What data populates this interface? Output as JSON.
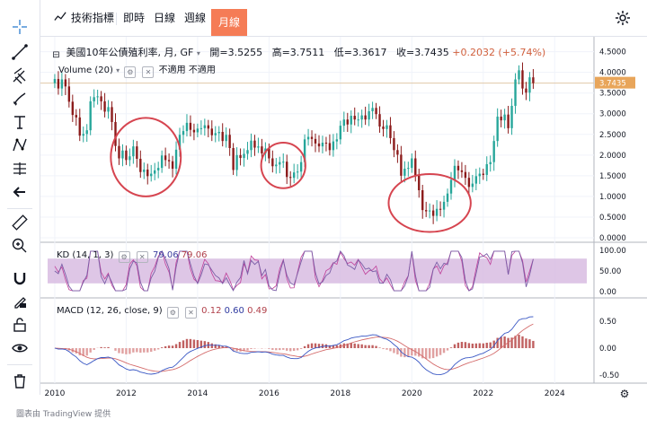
{
  "topbar": {
    "indicators_label": "技術指標",
    "intraday_label": "即時",
    "daily_label": "日線",
    "weekly_label": "週線",
    "monthly_label": "月線"
  },
  "legend_main": {
    "title": "美國10年公債殖利率, 月, GF",
    "open_label": "開=",
    "open": "3.5255",
    "high_label": "高=",
    "high": "3.7511",
    "low_label": "低=",
    "low": "3.3617",
    "close_label": "收=",
    "close": "3.7435",
    "change": "+0.2032 (+5.74%)"
  },
  "legend_volume": {
    "label": "Volume (20)",
    "na1": "不適用",
    "na2": "不適用"
  },
  "legend_kd": {
    "label": "KD (14, 1, 3)",
    "k": "79.06",
    "d": "79.06"
  },
  "legend_macd": {
    "label": "MACD (12, 26, close, 9)",
    "hist": "0.12",
    "macd": "0.60",
    "signal": "0.49"
  },
  "price_axis": [
    "4.5000",
    "4.0000",
    "3.5000",
    "3.0000",
    "2.5000",
    "2.0000",
    "1.5000",
    "1.0000",
    "0.5000",
    "0.0000"
  ],
  "last_price_tag": "3.7435",
  "kd_axis": [
    "100.00",
    "50.00",
    "0.00"
  ],
  "macd_axis": [
    "0.50",
    "0.00",
    "-0.50"
  ],
  "time_axis": [
    "2010",
    "2012",
    "2014",
    "2016",
    "2018",
    "2020",
    "2022",
    "2024"
  ],
  "footer": "圖表由 TradingView 提供",
  "colors": {
    "up": "#26a69a",
    "down": "#8b1a1a",
    "accent": "#f57c56",
    "kd_band": "#d6b8e0",
    "kd_k": "#7b5ea7",
    "kd_d": "#c0409a",
    "macd_line": "#3957c4",
    "signal_line": "#d46b6b",
    "circle": "#d64550"
  },
  "chart_data": {
    "type": "candlestick",
    "title": "美國10年公債殖利率, 月, GF",
    "xrange": [
      2009.8,
      2024.9
    ],
    "yrange": [
      0,
      4.6
    ],
    "closes": [
      [
        2010.0,
        3.84
      ],
      [
        2010.1,
        3.61
      ],
      [
        2010.2,
        3.83
      ],
      [
        2010.3,
        3.66
      ],
      [
        2010.4,
        3.29
      ],
      [
        2010.5,
        2.97
      ],
      [
        2010.6,
        2.91
      ],
      [
        2010.7,
        2.47
      ],
      [
        2010.8,
        2.51
      ],
      [
        2010.9,
        2.6
      ],
      [
        2011.0,
        3.3
      ],
      [
        2011.1,
        3.4
      ],
      [
        2011.2,
        3.42
      ],
      [
        2011.3,
        3.3
      ],
      [
        2011.4,
        3.05
      ],
      [
        2011.5,
        3.16
      ],
      [
        2011.6,
        2.8
      ],
      [
        2011.7,
        2.22
      ],
      [
        2011.8,
        1.92
      ],
      [
        2011.9,
        2.11
      ],
      [
        2012.0,
        1.88
      ],
      [
        2012.1,
        1.97
      ],
      [
        2012.2,
        2.21
      ],
      [
        2012.3,
        1.91
      ],
      [
        2012.4,
        1.59
      ],
      [
        2012.5,
        1.65
      ],
      [
        2012.6,
        1.49
      ],
      [
        2012.7,
        1.55
      ],
      [
        2012.8,
        1.63
      ],
      [
        2012.9,
        1.69
      ],
      [
        2013.0,
        1.99
      ],
      [
        2013.1,
        1.88
      ],
      [
        2013.2,
        1.85
      ],
      [
        2013.3,
        1.67
      ],
      [
        2013.4,
        2.13
      ],
      [
        2013.5,
        2.49
      ],
      [
        2013.6,
        2.58
      ],
      [
        2013.7,
        2.78
      ],
      [
        2013.8,
        2.61
      ],
      [
        2013.9,
        2.55
      ],
      [
        2014.0,
        2.64
      ],
      [
        2014.1,
        2.65
      ],
      [
        2014.2,
        2.72
      ],
      [
        2014.3,
        2.64
      ],
      [
        2014.4,
        2.48
      ],
      [
        2014.5,
        2.53
      ],
      [
        2014.6,
        2.56
      ],
      [
        2014.7,
        2.34
      ],
      [
        2014.8,
        2.49
      ],
      [
        2014.9,
        2.17
      ],
      [
        2015.0,
        1.64
      ],
      [
        2015.1,
        2.0
      ],
      [
        2015.2,
        1.93
      ],
      [
        2015.3,
        2.03
      ],
      [
        2015.4,
        2.12
      ],
      [
        2015.5,
        2.35
      ],
      [
        2015.6,
        2.18
      ],
      [
        2015.7,
        2.21
      ],
      [
        2015.8,
        2.04
      ],
      [
        2015.9,
        2.16
      ],
      [
        2016.0,
        1.92
      ],
      [
        2016.1,
        1.73
      ],
      [
        2016.2,
        1.77
      ],
      [
        2016.3,
        1.83
      ],
      [
        2016.4,
        1.84
      ],
      [
        2016.5,
        1.47
      ],
      [
        2016.6,
        1.45
      ],
      [
        2016.7,
        1.58
      ],
      [
        2016.8,
        1.6
      ],
      [
        2016.9,
        1.83
      ],
      [
        2017.0,
        2.38
      ],
      [
        2017.1,
        2.44
      ],
      [
        2017.2,
        2.39
      ],
      [
        2017.3,
        2.28
      ],
      [
        2017.4,
        2.21
      ],
      [
        2017.5,
        2.3
      ],
      [
        2017.6,
        2.29
      ],
      [
        2017.7,
        2.12
      ],
      [
        2017.8,
        2.33
      ],
      [
        2017.9,
        2.38
      ],
      [
        2018.0,
        2.71
      ],
      [
        2018.1,
        2.86
      ],
      [
        2018.2,
        2.74
      ],
      [
        2018.3,
        2.95
      ],
      [
        2018.4,
        2.86
      ],
      [
        2018.5,
        2.86
      ],
      [
        2018.6,
        2.96
      ],
      [
        2018.7,
        2.86
      ],
      [
        2018.8,
        3.06
      ],
      [
        2018.9,
        3.14
      ],
      [
        2019.0,
        2.99
      ],
      [
        2019.1,
        2.69
      ],
      [
        2019.2,
        2.63
      ],
      [
        2019.3,
        2.72
      ],
      [
        2019.4,
        2.41
      ],
      [
        2019.5,
        2.12
      ],
      [
        2019.6,
        2.01
      ],
      [
        2019.7,
        1.5
      ],
      [
        2019.8,
        1.67
      ],
      [
        2019.9,
        1.69
      ],
      [
        2020.0,
        1.92
      ],
      [
        2020.1,
        1.51
      ],
      [
        2020.2,
        1.15
      ],
      [
        2020.3,
        0.67
      ],
      [
        2020.4,
        0.64
      ],
      [
        2020.5,
        0.66
      ],
      [
        2020.6,
        0.53
      ],
      [
        2020.7,
        0.7
      ],
      [
        2020.8,
        0.68
      ],
      [
        2020.9,
        0.87
      ],
      [
        2021.0,
        1.07
      ],
      [
        2021.1,
        1.4
      ],
      [
        2021.2,
        1.74
      ],
      [
        2021.3,
        1.63
      ],
      [
        2021.4,
        1.59
      ],
      [
        2021.5,
        1.45
      ],
      [
        2021.6,
        1.23
      ],
      [
        2021.7,
        1.31
      ],
      [
        2021.8,
        1.49
      ],
      [
        2021.9,
        1.55
      ],
      [
        2022.0,
        1.52
      ],
      [
        2022.1,
        1.78
      ],
      [
        2022.2,
        1.83
      ],
      [
        2022.3,
        2.34
      ],
      [
        2022.4,
        2.93
      ],
      [
        2022.5,
        2.84
      ],
      [
        2022.6,
        2.98
      ],
      [
        2022.7,
        2.65
      ],
      [
        2022.8,
        3.19
      ],
      [
        2022.9,
        3.83
      ],
      [
        2023.0,
        4.05
      ],
      [
        2023.1,
        3.61
      ],
      [
        2023.2,
        3.51
      ],
      [
        2023.3,
        3.88
      ],
      [
        2023.4,
        3.74
      ]
    ],
    "kd_band": [
      20,
      80
    ],
    "kd_last": 79.06,
    "macd_last": {
      "hist": 0.12,
      "macd": 0.6,
      "signal": 0.49
    },
    "annotations": [
      "circle 2012-2013 lows",
      "circle 2016 lows",
      "circle 2020 lows"
    ]
  }
}
